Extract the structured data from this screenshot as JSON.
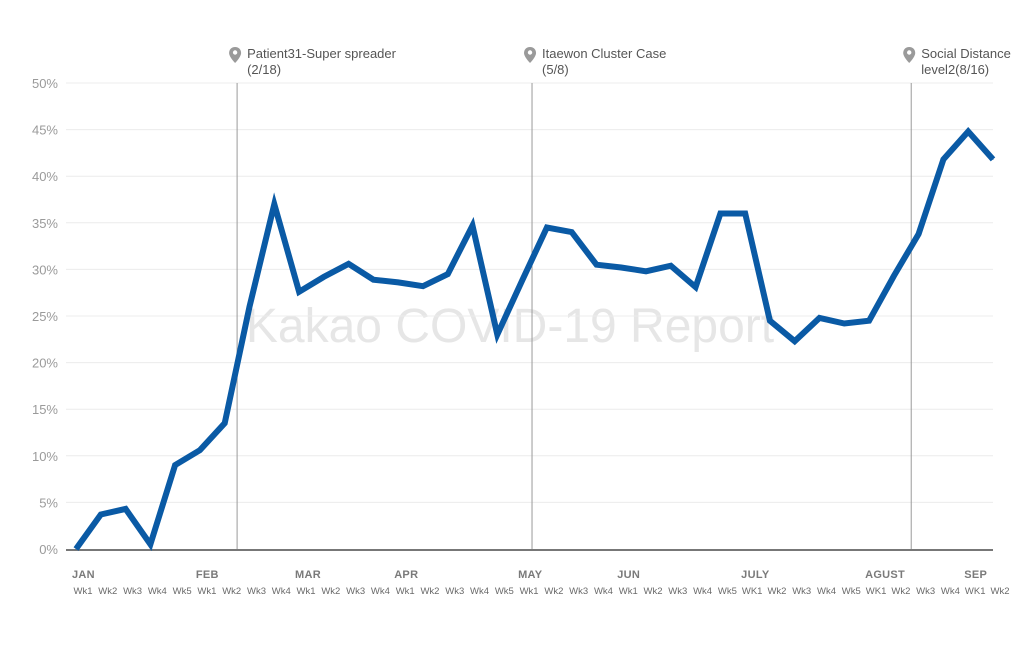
{
  "chart_data": {
    "type": "line",
    "watermark": "Kakao COVID-19 Report",
    "ylim": [
      0,
      50
    ],
    "y_ticks": [
      "0%",
      "5%",
      "10%",
      "15%",
      "20%",
      "25%",
      "30%",
      "35%",
      "40%",
      "45%",
      "50%"
    ],
    "y_tick_values": [
      0,
      5,
      10,
      15,
      20,
      25,
      30,
      35,
      40,
      45,
      50
    ],
    "line_color": "#0a5aa5",
    "grid": true,
    "x": [
      "Wk1",
      "Wk2",
      "Wk3",
      "Wk4",
      "Wk5",
      "Wk1",
      "Wk2",
      "Wk3",
      "Wk4",
      "Wk1",
      "Wk2",
      "Wk3",
      "Wk4",
      "Wk1",
      "Wk2",
      "Wk3",
      "Wk4",
      "Wk5",
      "Wk1",
      "Wk2",
      "Wk3",
      "Wk4",
      "Wk1",
      "Wk2",
      "Wk3",
      "Wk4",
      "Wk5",
      "WK1",
      "Wk2",
      "Wk3",
      "Wk4",
      "Wk5",
      "WK1",
      "Wk2",
      "Wk3",
      "Wk4",
      "WK1",
      "Wk2"
    ],
    "months": [
      {
        "label": "JAN",
        "index": 0
      },
      {
        "label": "FEB",
        "index": 5
      },
      {
        "label": "MAR",
        "index": 9
      },
      {
        "label": "APR",
        "index": 13
      },
      {
        "label": "MAY",
        "index": 18
      },
      {
        "label": "JUN",
        "index": 22
      },
      {
        "label": "JULY",
        "index": 27
      },
      {
        "label": "AGUST",
        "index": 32
      },
      {
        "label": "SEP",
        "index": 36
      }
    ],
    "series": [
      {
        "values": [
          0,
          3.7,
          4.3,
          0.5,
          9.0,
          10.6,
          13.5,
          26.0,
          37.0,
          27.6,
          29.2,
          30.6,
          28.9,
          28.6,
          28.2,
          29.5,
          34.7,
          23.0,
          28.8,
          34.5,
          34.0,
          30.5,
          30.2,
          29.8,
          30.4,
          28.1,
          36.0,
          36.0,
          24.5,
          22.3,
          24.8,
          24.2,
          24.5,
          29.3,
          33.8,
          41.8,
          44.8,
          41.8
        ]
      }
    ],
    "annotations": [
      {
        "index": 6.5,
        "line1": "Patient31-Super spreader",
        "line2": "(2/18)"
      },
      {
        "index": 18.4,
        "line1": "Itaewon Cluster Case",
        "line2": "(5/8)"
      },
      {
        "index": 33.7,
        "line1": "Social Distance",
        "line2": "level2(8/16)"
      }
    ]
  }
}
